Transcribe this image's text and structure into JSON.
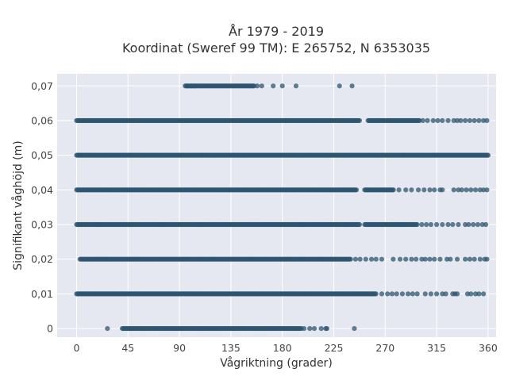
{
  "chart_data": {
    "type": "scatter",
    "title": "År 1979 - 2019",
    "subtitle": "Koordinat (Sweref 99 TM): E 265752, N 6353035",
    "xlabel": "Vågriktning (grader)",
    "ylabel": "Signifikant våghöjd (m)",
    "xlim": [
      -17,
      367
    ],
    "ylim": [
      -0.0025,
      0.0735
    ],
    "x_ticks": [
      0,
      45,
      90,
      135,
      180,
      225,
      270,
      315,
      360
    ],
    "x_tick_labels": [
      "0",
      "45",
      "90",
      "135",
      "180",
      "225",
      "270",
      "315",
      "360"
    ],
    "y_ticks": [
      0,
      0.01,
      0.02,
      0.03,
      0.04,
      0.05,
      0.06,
      0.07
    ],
    "y_tick_labels": [
      "0",
      "0,01",
      "0,02",
      "0,03",
      "0,04",
      "0,05",
      "0,06",
      "0,07"
    ],
    "grid": true,
    "marker_color": "#2e5570",
    "background_color": "#e5e8f0",
    "series": [
      {
        "level": 0.07,
        "dense_ranges": [
          [
            95,
            156
          ]
        ],
        "points": [
          97,
          100,
          103,
          158,
          162,
          172,
          180,
          192,
          230,
          241
        ]
      },
      {
        "level": 0.06,
        "dense_ranges": [
          [
            0,
            248
          ],
          [
            255,
            300
          ]
        ],
        "points": [
          303,
          307,
          312,
          316,
          320,
          325,
          330,
          333,
          336,
          340,
          344,
          348,
          352,
          356,
          359
        ]
      },
      {
        "level": 0.05,
        "dense_ranges": [
          [
            0,
            360
          ]
        ],
        "points": []
      },
      {
        "level": 0.04,
        "dense_ranges": [
          [
            0,
            245
          ],
          [
            252,
            278
          ]
        ],
        "points": [
          282,
          288,
          293,
          299,
          304,
          309,
          313,
          318,
          320,
          330,
          334,
          337,
          341,
          345,
          349,
          353,
          356,
          359
        ]
      },
      {
        "level": 0.03,
        "dense_ranges": [
          [
            0,
            248
          ],
          [
            252,
            298
          ]
        ],
        "points": [
          302,
          306,
          310,
          315,
          320,
          325,
          329,
          334,
          340,
          343,
          347,
          351,
          355,
          358
        ]
      },
      {
        "level": 0.02,
        "dense_ranges": [
          [
            3,
            240
          ]
        ],
        "points": [
          244,
          248,
          253,
          258,
          262,
          267,
          277,
          283,
          288,
          293,
          297,
          302,
          305,
          309,
          313,
          318,
          324,
          327,
          333,
          340,
          344,
          348,
          353,
          357,
          359
        ]
      },
      {
        "level": 0.01,
        "dense_ranges": [
          [
            0,
            262
          ]
        ],
        "points": [
          267,
          272,
          276,
          280,
          285,
          290,
          294,
          298,
          305,
          310,
          315,
          320,
          323,
          329,
          331,
          333,
          342,
          345,
          349,
          352,
          356
        ]
      },
      {
        "level": 0,
        "dense_ranges": [
          [
            40,
            197
          ]
        ],
        "points": [
          27,
          199,
          204,
          208,
          214,
          218,
          219,
          243
        ]
      }
    ]
  }
}
